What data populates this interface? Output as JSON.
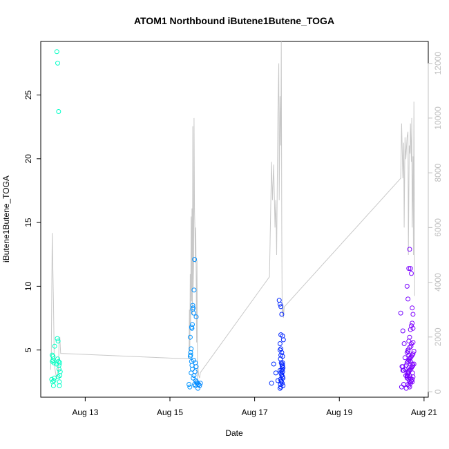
{
  "chart_data": {
    "type": "scatter",
    "title": "ATOM1 Northbound iButene1Butene_TOGA",
    "xlabel": "Date",
    "ylabel": "iButene1Butene_TOGA",
    "x_tick_labels": [
      "Aug 13",
      "Aug 15",
      "Aug 17",
      "Aug 19",
      "Aug 21"
    ],
    "x_tick_days": [
      13,
      15,
      17,
      19,
      21
    ],
    "xlim_days": [
      11.95,
      21.1
    ],
    "y_ticks": [
      5,
      10,
      15,
      20,
      25
    ],
    "ylim": [
      1.3,
      29.2
    ],
    "y2_ticks": [
      0,
      2000,
      4000,
      6000,
      8000,
      10000,
      12000
    ],
    "y2lim": [
      -200,
      12800
    ],
    "grid": false,
    "legend": "none",
    "color_scale": "date, cyan to violet",
    "point_series": {
      "name": "iButene1Butene_TOGA",
      "x_days": [
        12.22,
        12.24,
        12.26,
        12.28,
        12.21,
        12.23,
        12.25,
        12.27,
        12.22,
        12.24,
        12.26,
        12.33,
        12.35,
        12.37,
        12.34,
        12.36,
        12.32,
        12.38,
        12.35,
        12.37,
        12.36,
        12.39,
        12.4,
        12.38,
        12.4,
        12.41,
        12.39,
        15.45,
        15.47,
        15.49,
        15.48,
        15.5,
        15.52,
        15.51,
        15.53,
        15.55,
        15.54,
        15.56,
        15.57,
        15.58,
        15.5,
        15.52,
        15.56,
        15.6,
        15.62,
        15.64,
        15.58,
        15.6,
        15.61,
        15.63,
        15.65,
        15.55,
        15.57,
        15.59,
        15.53,
        15.49,
        15.51,
        15.66,
        15.68,
        15.7,
        15.72,
        15.48,
        15.62,
        15.54,
        17.4,
        17.45,
        17.5,
        17.55,
        17.58,
        17.6,
        17.62,
        17.64,
        17.66,
        17.68,
        17.6,
        17.62,
        17.64,
        17.66,
        17.61,
        17.63,
        17.65,
        17.67,
        17.6,
        17.62,
        17.64,
        17.66,
        17.61,
        17.63,
        17.65,
        17.67,
        17.62,
        17.64,
        17.66,
        17.6,
        17.62,
        17.64,
        17.66,
        17.63,
        17.65,
        17.61,
        17.67,
        17.64,
        17.62,
        17.66,
        17.6,
        20.45,
        20.47,
        20.5,
        20.52,
        20.48,
        20.5,
        20.53,
        20.55,
        20.57,
        20.6,
        20.62,
        20.64,
        20.66,
        20.68,
        20.6,
        20.62,
        20.64,
        20.66,
        20.68,
        20.7,
        20.72,
        20.74,
        20.6,
        20.62,
        20.64,
        20.66,
        20.68,
        20.7,
        20.72,
        20.74,
        20.62,
        20.64,
        20.66,
        20.68,
        20.7,
        20.72,
        20.6,
        20.62,
        20.64,
        20.66,
        20.68,
        20.7,
        20.72,
        20.74,
        20.76,
        20.6,
        20.62,
        20.64,
        20.66,
        20.68,
        20.7,
        20.72,
        20.74,
        20.76,
        20.58,
        20.6,
        20.62,
        20.64,
        20.66,
        20.68,
        20.7,
        20.72,
        20.74,
        20.5,
        20.55,
        20.58,
        20.66,
        20.7,
        20.74,
        20.62,
        20.68,
        20.72,
        20.52,
        20.64,
        20.69,
        20.73
      ],
      "y": [
        4.6,
        4.5,
        4.0,
        5.3,
        2.7,
        2.5,
        2.2,
        2.8,
        4.1,
        4.2,
        2.6,
        28.4,
        27.5,
        23.7,
        5.9,
        5.7,
        3.9,
        3.5,
        4.3,
        4.1,
        2.9,
        2.2,
        3.0,
        3.8,
        4.0,
        3.3,
        2.5,
        2.3,
        2.1,
        4.6,
        4.5,
        5.1,
        6.7,
        6.8,
        7.0,
        8.3,
        8.2,
        7.9,
        9.7,
        12.1,
        3.2,
        3.8,
        4.2,
        4.0,
        3.7,
        2.4,
        2.3,
        2.2,
        2.6,
        2.5,
        2.4,
        2.8,
        3.0,
        3.3,
        3.5,
        4.8,
        4.1,
        2.0,
        2.3,
        2.2,
        2.4,
        6.0,
        7.6,
        8.5,
        2.4,
        3.9,
        3.2,
        2.6,
        8.9,
        8.6,
        8.4,
        7.8,
        6.1,
        5.8,
        5.5,
        5.1,
        4.8,
        4.5,
        4.3,
        4.0,
        3.7,
        3.6,
        3.4,
        3.2,
        3.0,
        2.9,
        2.7,
        2.5,
        2.4,
        2.2,
        2.1,
        3.1,
        3.3,
        5.0,
        6.2,
        3.9,
        4.0,
        2.6,
        3.5,
        2.3,
        2.8,
        3.4,
        4.6,
        3.8,
        2.0,
        7.9,
        2.1,
        6.5,
        2.3,
        3.7,
        3.4,
        5.5,
        4.4,
        3.0,
        2.8,
        3.2,
        3.6,
        2.5,
        2.4,
        10.0,
        9.0,
        11.4,
        12.9,
        11.4,
        11.0,
        8.3,
        7.8,
        4.8,
        5.0,
        5.7,
        6.0,
        6.6,
        6.9,
        7.1,
        6.7,
        2.3,
        2.2,
        2.1,
        2.4,
        2.6,
        2.5,
        3.0,
        3.1,
        3.3,
        3.4,
        3.5,
        3.6,
        3.7,
        3.8,
        3.9,
        4.0,
        4.1,
        4.2,
        4.3,
        4.4,
        4.5,
        4.6,
        4.7,
        4.9,
        2.0,
        2.9,
        3.2,
        2.7,
        3.0,
        2.8,
        2.6,
        2.7,
        2.9,
        3.7,
        3.5,
        3.8,
        5.2,
        5.5,
        5.6,
        4.9,
        4.1,
        3.9,
        3.4,
        4.6,
        5.3,
        3.2
      ]
    },
    "line_series": {
      "name": "",
      "axis": "right",
      "x_days": [
        12.18,
        12.2,
        12.22,
        12.25,
        12.27,
        12.29,
        12.31,
        12.33,
        12.35,
        12.37,
        12.38,
        12.4,
        12.42,
        15.45,
        15.46,
        15.47,
        15.48,
        15.49,
        15.5,
        15.51,
        15.52,
        15.53,
        15.54,
        15.55,
        15.56,
        15.57,
        15.58,
        15.59,
        15.6,
        15.61,
        15.62,
        15.63,
        15.64,
        15.65,
        15.66,
        15.68,
        15.7,
        15.72,
        17.35,
        17.4,
        17.42,
        17.45,
        17.48,
        17.5,
        17.52,
        17.55,
        17.57,
        17.58,
        17.6,
        17.62,
        17.63,
        17.64,
        17.65,
        17.66,
        17.67,
        17.68,
        17.7,
        20.45,
        20.47,
        20.5,
        20.52,
        20.53,
        20.55,
        20.57,
        20.6,
        20.62,
        20.63,
        20.65,
        20.67,
        20.68,
        20.7,
        20.71,
        20.72,
        20.74,
        20.75,
        20.76,
        20.78
      ],
      "y": [
        800,
        1400,
        5800,
        3300,
        1000,
        800,
        600,
        500,
        700,
        900,
        1800,
        2000,
        1400,
        1200,
        3000,
        1500,
        4300,
        2500,
        6400,
        3300,
        6700,
        2800,
        9700,
        3800,
        4600,
        10000,
        6600,
        5900,
        4700,
        6000,
        4300,
        1800,
        4800,
        400,
        900,
        600,
        500,
        700,
        4200,
        8400,
        7000,
        8300,
        6000,
        7000,
        5000,
        10200,
        12000,
        7000,
        10800,
        9000,
        12800,
        6000,
        2800,
        3000,
        3200,
        2700,
        3100,
        7800,
        9800,
        7800,
        9100,
        6000,
        9300,
        8500,
        9300,
        9500,
        5000,
        9000,
        8700,
        9800,
        8400,
        10000,
        6000,
        8600,
        5000,
        10600,
        3500
      ]
    }
  }
}
